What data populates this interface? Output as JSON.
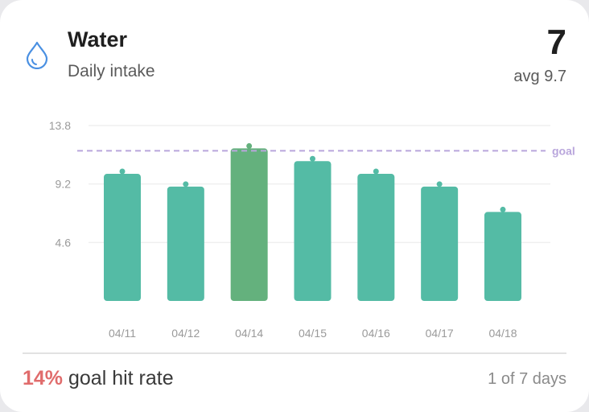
{
  "header": {
    "title": "Water",
    "subtitle": "Daily intake",
    "value": "7",
    "avg_label": "avg 9.7",
    "icon": "water-drop-icon",
    "icon_color": "#4a90e2"
  },
  "footer": {
    "hit_rate": "14%",
    "hit_rate_label": "goal hit rate",
    "days_label": "1 of 7 days",
    "hit_rate_color": "#e06c6c"
  },
  "colors": {
    "bar": "#54bba5",
    "bar_goal_met": "#64b17d",
    "goal_line": "#b9a6dc",
    "grid": "#efefef"
  },
  "chart_data": {
    "type": "bar",
    "categories": [
      "04/11",
      "04/12",
      "04/14",
      "04/15",
      "04/16",
      "04/17",
      "04/18"
    ],
    "values": [
      10.0,
      9.0,
      12.0,
      11.0,
      10.0,
      9.0,
      7.0
    ],
    "goal": 12.0,
    "goal_label": "goal",
    "yticks": [
      4.6,
      9.2,
      13.8
    ],
    "ylim": [
      0,
      13.8
    ],
    "grid": true
  }
}
